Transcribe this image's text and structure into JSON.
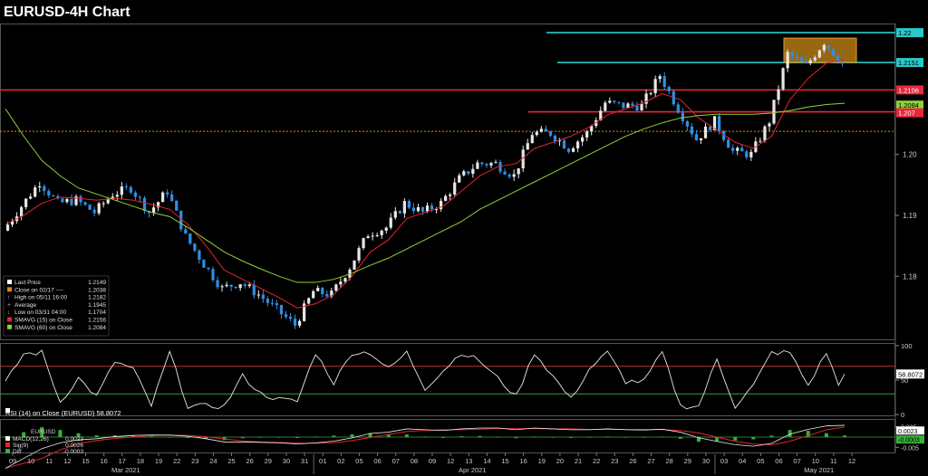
{
  "title": "EURUSD-4H Chart",
  "colors": {
    "background": "#000000",
    "up_candle": "#e8e8e8",
    "down_candle": "#2f8fe6",
    "smavg15": "#e0262e",
    "smavg60": "#8fd13a",
    "resistance_cyan": "#29c9c9",
    "support_red": "#e8283c",
    "dotted_orange": "#d9891e",
    "box_orange": "#c98a18",
    "rsi_line": "#e8e8e8",
    "rsi_upper": "#c0303a",
    "rsi_lower": "#3e9a3e",
    "macd_line": "#e8e8e8",
    "signal_line": "#e0262e",
    "diff_bar": "#38b038"
  },
  "legend": {
    "rows": [
      {
        "label": "Last Price",
        "value": "1.2149",
        "icon": "white-square"
      },
      {
        "label": "Close on 02/17 ----",
        "value": "1.2038",
        "icon": "orange-square"
      },
      {
        "label": "High on 05/11 16:00",
        "value": "1.2182",
        "icon": "arrow-up"
      },
      {
        "label": "Average",
        "value": "1.1945",
        "icon": "plus"
      },
      {
        "label": "Low on 03/31 04:00",
        "value": "1.1704",
        "icon": "arrow-down"
      },
      {
        "label": "SMAVG (15)  on Close",
        "value": "1.2156",
        "icon": "red-square"
      },
      {
        "label": "SMAVG (60)  on Close",
        "value": "1.2084",
        "icon": "green-square"
      }
    ]
  },
  "price_axis": {
    "ticks": [
      "1.20",
      "1.19",
      "1.18"
    ],
    "tags": [
      {
        "label": "1.22",
        "color": "#29c9c9",
        "text_color": "#000000"
      },
      {
        "label": "1.2151",
        "color": "#29c9c9",
        "text_color": "#000000"
      },
      {
        "label": "1.2106",
        "color": "#e8283c",
        "text_color": "#ffffff"
      },
      {
        "label": "1.2084",
        "color": "#8fd13a",
        "text_color": "#000000"
      },
      {
        "label": "1.207",
        "color": "#e8283c",
        "text_color": "#ffffff"
      }
    ]
  },
  "rsi_panel": {
    "legend": "RSI (14)  on Close (EURUSD) 58.8072",
    "ticks": [
      "100",
      "50",
      "0"
    ],
    "last_value": "58.8072"
  },
  "macd_panel": {
    "header": "EURUSD",
    "legend": [
      {
        "label": "MACD(12,26)",
        "value": "0.0023",
        "icon": "white-square"
      },
      {
        "label": "Sig(9)",
        "value": "0.0026",
        "icon": "red-square"
      },
      {
        "label": "Diff",
        "value": "-0.0003",
        "icon": "green-square"
      }
    ],
    "ticks": [
      "0.005",
      "-0.005"
    ],
    "tags": [
      "0.0023",
      "-0.0003"
    ]
  },
  "x_axis": {
    "days": [
      "09",
      "10",
      "11",
      "12",
      "15",
      "16",
      "17",
      "18",
      "19",
      "22",
      "23",
      "24",
      "25",
      "26",
      "29",
      "30",
      "31",
      "01",
      "02",
      "05",
      "06",
      "07",
      "08",
      "09",
      "12",
      "13",
      "14",
      "15",
      "16",
      "19",
      "20",
      "21",
      "22",
      "23",
      "26",
      "27",
      "28",
      "29",
      "30",
      "03",
      "04",
      "05",
      "06",
      "07",
      "10",
      "11",
      "12"
    ],
    "months": [
      {
        "label": "Mar 2021",
        "after_day_index": 4
      },
      {
        "label": "Apr 2021",
        "after_day_index": 23
      },
      {
        "label": "May 2021",
        "after_day_index": 42
      }
    ]
  },
  "chart_data": {
    "type": "line",
    "description_series": "EURUSD 4-hour closing price path (approximate, read from chart)",
    "ylim": [
      1.1695,
      1.2215
    ],
    "x": [
      "03/09",
      "03/10",
      "03/11",
      "03/12",
      "03/15",
      "03/16",
      "03/17",
      "03/18",
      "03/19",
      "03/22",
      "03/23",
      "03/24",
      "03/25",
      "03/26",
      "03/29",
      "03/30",
      "03/31",
      "04/01",
      "04/02",
      "04/05",
      "04/06",
      "04/07",
      "04/08",
      "04/09",
      "04/12",
      "04/13",
      "04/14",
      "04/15",
      "04/16",
      "04/19",
      "04/20",
      "04/21",
      "04/22",
      "04/23",
      "04/26",
      "04/27",
      "04/28",
      "04/29",
      "04/30",
      "05/03",
      "05/04",
      "05/05",
      "05/06",
      "05/07",
      "05/10",
      "05/11",
      "05/12"
    ],
    "series": [
      {
        "name": "Last Price",
        "values": [
          1.1875,
          1.1915,
          1.1955,
          1.192,
          1.1925,
          1.1905,
          1.1935,
          1.1945,
          1.1905,
          1.194,
          1.1865,
          1.182,
          1.178,
          1.179,
          1.177,
          1.1745,
          1.172,
          1.1775,
          1.177,
          1.1815,
          1.187,
          1.188,
          1.192,
          1.1905,
          1.192,
          1.196,
          1.1985,
          1.1985,
          1.1965,
          1.2035,
          1.2035,
          1.201,
          1.2035,
          1.2085,
          1.208,
          1.208,
          1.213,
          1.2075,
          1.2025,
          1.2055,
          1.2005,
          1.2,
          1.2055,
          1.2165,
          1.2145,
          1.2185,
          1.2149
        ]
      },
      {
        "name": "SMAVG (15)",
        "values": [
          1.1885,
          1.19,
          1.192,
          1.193,
          1.1928,
          1.1925,
          1.1928,
          1.1925,
          1.1918,
          1.191,
          1.1885,
          1.185,
          1.181,
          1.1795,
          1.178,
          1.1765,
          1.1748,
          1.1755,
          1.177,
          1.18,
          1.184,
          1.186,
          1.1895,
          1.1905,
          1.1915,
          1.194,
          1.1965,
          1.198,
          1.1985,
          1.201,
          1.202,
          1.203,
          1.2045,
          1.2065,
          1.2075,
          1.2085,
          1.21,
          1.209,
          1.206,
          1.204,
          1.202,
          1.201,
          1.203,
          1.209,
          1.2125,
          1.215,
          1.2156
        ]
      },
      {
        "name": "SMAVG (60)",
        "values": [
          1.2075,
          1.203,
          1.199,
          1.1965,
          1.1945,
          1.1935,
          1.1925,
          1.1915,
          1.1905,
          1.1898,
          1.188,
          1.186,
          1.184,
          1.1825,
          1.1812,
          1.18,
          1.179,
          1.179,
          1.1795,
          1.1805,
          1.1818,
          1.183,
          1.1845,
          1.186,
          1.1875,
          1.189,
          1.191,
          1.1925,
          1.194,
          1.1955,
          1.197,
          1.1985,
          1.2,
          1.2015,
          1.203,
          1.2042,
          1.2052,
          1.206,
          1.2064,
          1.2066,
          1.2066,
          1.2066,
          1.2068,
          1.2072,
          1.2078,
          1.2082,
          1.2084
        ]
      }
    ],
    "hlines": [
      {
        "name": "1.22",
        "value": 1.22,
        "color": "#29c9c9"
      },
      {
        "name": "1.2151",
        "value": 1.2151,
        "color": "#29c9c9"
      },
      {
        "name": "1.2106",
        "value": 1.2106,
        "color": "#e8283c"
      },
      {
        "name": "1.207",
        "value": 1.207,
        "color": "#e8283c"
      },
      {
        "name": "Close on 02/17",
        "value": 1.2038,
        "color": "#d9891e"
      }
    ],
    "rsi": {
      "ylim": [
        0,
        100
      ],
      "upper": 70,
      "lower": 30,
      "last": 58.8072
    },
    "macd": {
      "macd": 0.0023,
      "signal": 0.0026,
      "diff": -0.0003
    }
  }
}
